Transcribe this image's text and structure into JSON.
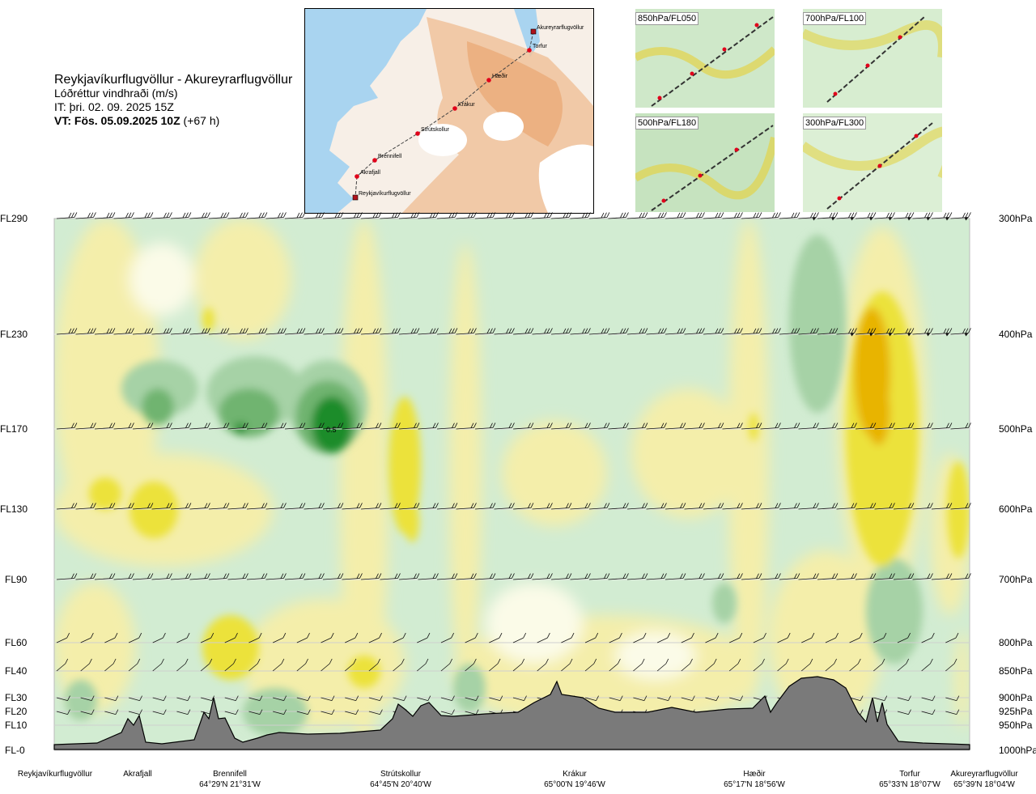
{
  "header": {
    "route": "Reykjavíkurflugvöllur - Akureyrarflugvöllur",
    "variable": "Lóðréttur vindhraði (m/s)",
    "initial_time": "IT: þri. 02. 09. 2025 15Z",
    "valid_label": "VT: Fös. 05.09.2025 10Z",
    "valid_offset": "(+67 h)"
  },
  "map": {
    "points": [
      {
        "name": "Akureyrarflugvöllur",
        "kind": "airport"
      },
      {
        "name": "Torfur",
        "kind": "waypoint"
      },
      {
        "name": "Hæðir",
        "kind": "waypoint"
      },
      {
        "name": "Krákur",
        "kind": "waypoint"
      },
      {
        "name": "Strútskollur",
        "kind": "waypoint"
      },
      {
        "name": "Brennifell",
        "kind": "waypoint"
      },
      {
        "name": "Akrafjall",
        "kind": "waypoint"
      },
      {
        "name": "Reykjavíkurflugvöllur",
        "kind": "airport"
      }
    ],
    "colors": {
      "sea": "#a9d4f0",
      "land_low": "#f6f1ec",
      "land_high": "#f0b07a",
      "glacier": "#ffffff",
      "route": "#444444",
      "waypoint": "#e0001a"
    }
  },
  "thumbnails": [
    {
      "label": "850hPa/FL050"
    },
    {
      "label": "700hPa/FL100"
    },
    {
      "label": "500hPa/FL180"
    },
    {
      "label": "300hPa/FL300"
    }
  ],
  "levels": [
    {
      "fl": "FL290",
      "hpa": "300hPa"
    },
    {
      "fl": "FL230",
      "hpa": "400hPa"
    },
    {
      "fl": "FL170",
      "hpa": "500hPa"
    },
    {
      "fl": "FL130",
      "hpa": "600hPa"
    },
    {
      "fl": "FL90",
      "hpa": "700hPa"
    },
    {
      "fl": "FL60",
      "hpa": "800hPa"
    },
    {
      "fl": "FL40",
      "hpa": "850hPa"
    },
    {
      "fl": "FL30",
      "hpa": "900hPa"
    },
    {
      "fl": "FL20",
      "hpa": "925hPa"
    },
    {
      "fl": "FL10",
      "hpa": "950hPa"
    },
    {
      "fl": "FL-0",
      "hpa": "1000hPa"
    }
  ],
  "stations": [
    {
      "name": "Reykjavíkurflugvöllur",
      "coord": ""
    },
    {
      "name": "Akrafjall",
      "coord": ""
    },
    {
      "name": "Brennifell",
      "coord": "64°29'N 21°31'W"
    },
    {
      "name": "Strútskollur",
      "coord": "64°45'N 20°40'W"
    },
    {
      "name": "Krákur",
      "coord": "65°00'N 19°46'W"
    },
    {
      "name": "Hæðir",
      "coord": "65°17'N 18°56'W"
    },
    {
      "name": "Torfur",
      "coord": "65°33'N 18°07'W"
    },
    {
      "name": "Akureyrarflugvöllur",
      "coord": "65°39'N 18°04'W"
    }
  ],
  "chart_data": {
    "type": "heatmap",
    "title": "Lóðréttur vindhraði (m/s)",
    "x_axis": "route stations Reykjavíkurflugvöllur → Akureyrarflugvöllur",
    "y_axis": "pressure level (hPa) / flight level",
    "annotation": "0.5",
    "colors": {
      "strong_down": "#e8b400",
      "down": "#ece23a",
      "weak_down": "#f4eeaa",
      "near_zero": "#fbfbe8",
      "weak_up": "#d2ecd2",
      "up": "#a6d2a6",
      "moderate_up": "#6fb46f",
      "strong_up": "#1f8c2a",
      "terrain": "#7a7a7a"
    },
    "features": [
      {
        "x_station_frac": 0.3,
        "level_hPa": 500,
        "value": 0.5,
        "sign": "up"
      },
      {
        "x_station_frac": 0.2,
        "level_hPa": 500,
        "value": 0.3,
        "sign": "up"
      },
      {
        "x_station_frac": 0.1,
        "level_hPa": 500,
        "value": 0.2,
        "sign": "up"
      },
      {
        "x_station_frac": 0.9,
        "level_hPa": 400,
        "value": -0.4,
        "sign": "down"
      },
      {
        "x_station_frac": 0.1,
        "level_hPa": 600,
        "value": -0.25,
        "sign": "down"
      },
      {
        "x_station_frac": 0.38,
        "level_hPa": 500,
        "value": -0.2,
        "sign": "down"
      }
    ]
  }
}
